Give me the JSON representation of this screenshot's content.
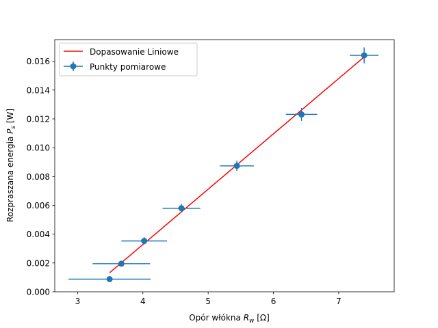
{
  "chart_data": {
    "type": "scatter",
    "title": "",
    "xlabel": {
      "main": "Opór włókna ",
      "var": "R",
      "sub": "w",
      "unit": " [Ω]"
    },
    "ylabel": {
      "main": "Rozpraszana energia ",
      "var": "P",
      "sub": "s",
      "unit": " [W]"
    },
    "xlim": [
      2.65,
      7.85
    ],
    "ylim": [
      -0.0,
      0.0175
    ],
    "xticks": [
      3,
      4,
      5,
      6,
      7
    ],
    "xtick_labels": [
      "3",
      "4",
      "5",
      "6",
      "7"
    ],
    "yticks": [
      0.0,
      0.002,
      0.004,
      0.006,
      0.008,
      0.01,
      0.012,
      0.014,
      0.016
    ],
    "ytick_labels": [
      "0.000",
      "0.002",
      "0.004",
      "0.006",
      "0.008",
      "0.010",
      "0.012",
      "0.014",
      "0.016"
    ],
    "grid": false,
    "legend_position": "top-left",
    "series": [
      {
        "name": "Punkty pomiarowe",
        "kind": "errorbar",
        "color": "#1f77b4",
        "x": [
          3.49,
          3.67,
          4.02,
          4.59,
          5.44,
          6.43,
          7.39
        ],
        "y": [
          0.00088,
          0.00195,
          0.00353,
          0.0058,
          0.00874,
          0.01231,
          0.01641
        ],
        "xerr": [
          0.63,
          0.44,
          0.35,
          0.29,
          0.26,
          0.24,
          0.22
        ],
        "yerr": [
          5e-05,
          0.0001,
          0.00025,
          0.0003,
          0.00035,
          0.00045,
          0.00055
        ]
      },
      {
        "name": "Dopasowanie Liniowe",
        "kind": "line",
        "color": "#ff0000",
        "x": [
          3.49,
          7.39
        ],
        "y": [
          0.00132,
          0.0163
        ]
      }
    ]
  }
}
